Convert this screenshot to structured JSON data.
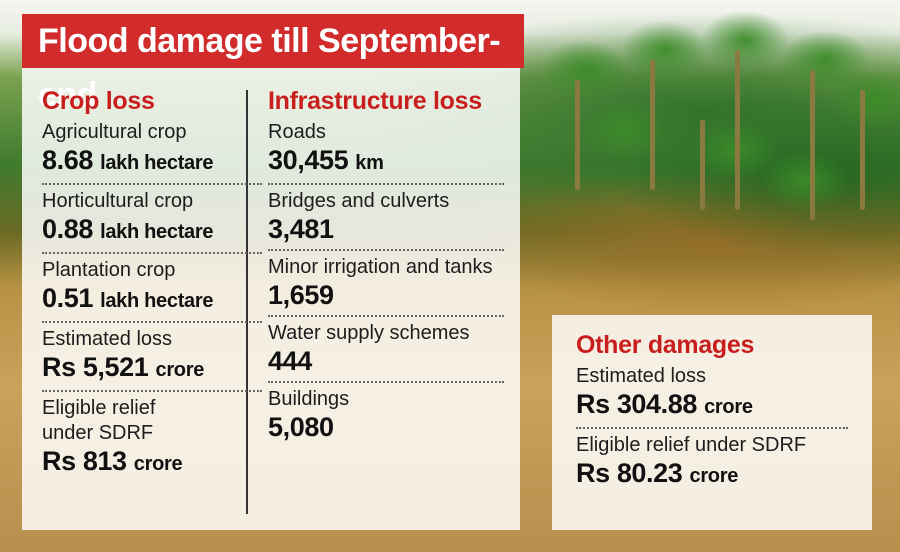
{
  "title": "Flood damage till September-end",
  "crop_loss": {
    "heading": "Crop loss",
    "items": [
      {
        "label": "Agricultural crop",
        "value": "8.68",
        "unit": "lakh hectare"
      },
      {
        "label": "Horticultural crop",
        "value": "0.88",
        "unit": "lakh hectare"
      },
      {
        "label": "Plantation crop",
        "value": "0.51",
        "unit": "lakh hectare"
      },
      {
        "label": "Estimated loss",
        "value": "Rs 5,521",
        "unit": "crore"
      },
      {
        "label": "Eligible relief under SDRF",
        "value": "Rs 813",
        "unit": "crore"
      }
    ]
  },
  "infrastructure_loss": {
    "heading": "Infrastructure loss",
    "items": [
      {
        "label": "Roads",
        "value": "30,455",
        "unit": "km"
      },
      {
        "label": "Bridges and culverts",
        "value": "3,481",
        "unit": ""
      },
      {
        "label": "Minor irrigation and tanks",
        "value": "1,659",
        "unit": ""
      },
      {
        "label": "Water supply schemes",
        "value": "444",
        "unit": ""
      },
      {
        "label": "Buildings",
        "value": "5,080",
        "unit": ""
      }
    ]
  },
  "other_damages": {
    "heading": "Other damages",
    "items": [
      {
        "label": "Estimated loss",
        "value": "Rs 304.88",
        "unit": "crore"
      },
      {
        "label": "Eligible relief under SDRF",
        "value": "Rs 80.23",
        "unit": "crore"
      }
    ]
  }
}
